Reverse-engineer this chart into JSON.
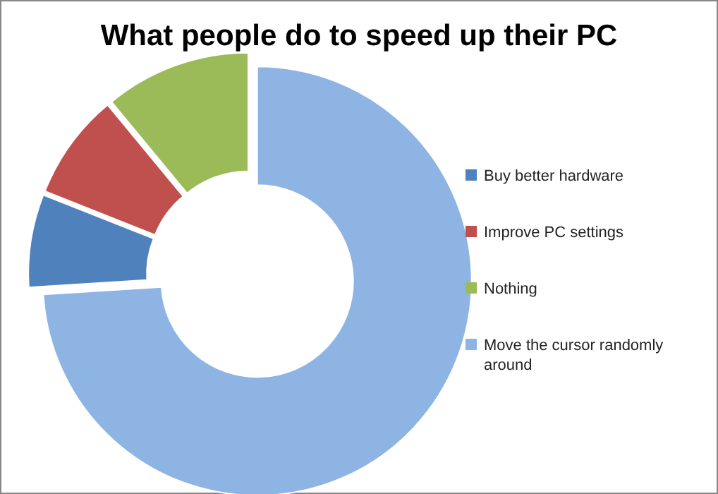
{
  "chart_data": {
    "type": "donut",
    "title": "What people do to speed up their PC",
    "categories": [
      "Buy better hardware",
      "Improve PC settings",
      "Nothing",
      "Move the cursor randomly around"
    ],
    "values": [
      7,
      8,
      11,
      74
    ],
    "colors": [
      "#4f81bd",
      "#c0504d",
      "#9bbb59",
      "#8eb4e3"
    ],
    "legend": "right"
  }
}
